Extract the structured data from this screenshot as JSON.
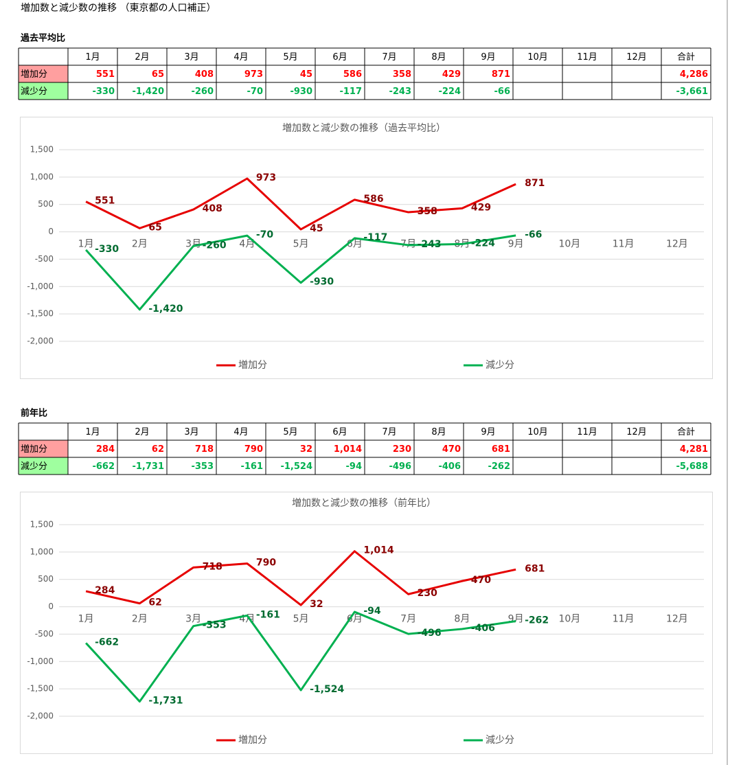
{
  "title": "増加数と減少数の推移 （東京都の人口補正）",
  "sections": [
    {
      "heading": "過去平均比",
      "table": {
        "header": [
          "1月",
          "2月",
          "3月",
          "4月",
          "5月",
          "6月",
          "7月",
          "8月",
          "9月",
          "10月",
          "11月",
          "12月",
          "合計"
        ],
        "rows": [
          {
            "label": "増加分",
            "values": [
              "551",
              "65",
              "408",
              "973",
              "45",
              "586",
              "358",
              "429",
              "871"
            ],
            "total": "4,286"
          },
          {
            "label": "減少分",
            "values": [
              "-330",
              "-1,420",
              "-260",
              "-70",
              "-930",
              "-117",
              "-243",
              "-224",
              "-66"
            ],
            "total": "-3,661"
          }
        ]
      }
    },
    {
      "heading": "前年比",
      "table": {
        "header": [
          "1月",
          "2月",
          "3月",
          "4月",
          "5月",
          "6月",
          "7月",
          "8月",
          "9月",
          "10月",
          "11月",
          "12月",
          "合計"
        ],
        "rows": [
          {
            "label": "増加分",
            "values": [
              "284",
              "62",
              "718",
              "790",
              "32",
              "1,014",
              "230",
              "470",
              "681"
            ],
            "total": "4,281"
          },
          {
            "label": "減少分",
            "values": [
              "-662",
              "-1,731",
              "-353",
              "-161",
              "-1,524",
              "-94",
              "-496",
              "-406",
              "-262"
            ],
            "total": "-5,688"
          }
        ]
      }
    }
  ],
  "chart_data": [
    {
      "type": "line",
      "title": "増加数と減少数の推移（過去平均比）",
      "categories": [
        "1月",
        "2月",
        "3月",
        "4月",
        "5月",
        "6月",
        "7月",
        "8月",
        "9月",
        "10月",
        "11月",
        "12月"
      ],
      "series": [
        {
          "name": "増加分",
          "color": "#e60000",
          "label_color": "#8b0000",
          "values": [
            551,
            65,
            408,
            973,
            45,
            586,
            358,
            429,
            871,
            null,
            null,
            null
          ],
          "value_labels": [
            "551",
            "65",
            "408",
            "973",
            "45",
            "586",
            "358",
            "429",
            "871",
            null,
            null,
            null
          ]
        },
        {
          "name": "減少分",
          "color": "#00b050",
          "label_color": "#006b30",
          "values": [
            -330,
            -1420,
            -260,
            -70,
            -930,
            -117,
            -243,
            -224,
            -66,
            null,
            null,
            null
          ],
          "value_labels": [
            "-330",
            "-1,420",
            "-260",
            "-70",
            "-930",
            "-117",
            "-243",
            "-224",
            "-66",
            null,
            null,
            null
          ]
        }
      ],
      "ylim": [
        -2000,
        1500
      ],
      "yticks": [
        {
          "value": 1500,
          "label": "1,500"
        },
        {
          "value": 1000,
          "label": "1,000"
        },
        500,
        0,
        -500,
        {
          "value": -1000,
          "label": "-1,000"
        },
        {
          "value": -1500,
          "label": "-1,500"
        },
        {
          "value": -2000,
          "label": "-2,000"
        }
      ],
      "grid": true,
      "legend": "bottom"
    },
    {
      "type": "line",
      "title": "増加数と減少数の推移（前年比）",
      "categories": [
        "1月",
        "2月",
        "3月",
        "4月",
        "5月",
        "6月",
        "7月",
        "8月",
        "9月",
        "10月",
        "11月",
        "12月"
      ],
      "series": [
        {
          "name": "増加分",
          "color": "#e60000",
          "label_color": "#8b0000",
          "values": [
            284,
            62,
            718,
            790,
            32,
            1014,
            230,
            470,
            681,
            null,
            null,
            null
          ],
          "value_labels": [
            "284",
            "62",
            "718",
            "790",
            "32",
            "1,014",
            "230",
            "470",
            "681",
            null,
            null,
            null
          ]
        },
        {
          "name": "減少分",
          "color": "#00b050",
          "label_color": "#006b30",
          "values": [
            -662,
            -1731,
            -353,
            -161,
            -1524,
            -94,
            -496,
            -406,
            -262,
            null,
            null,
            null
          ],
          "value_labels": [
            "-662",
            "-1,731",
            "-353",
            "-161",
            "-1,524",
            "-94",
            "-496",
            "-406",
            "-262",
            null,
            null,
            null
          ]
        }
      ],
      "ylim": [
        -2000,
        1500
      ],
      "yticks": [
        {
          "value": 1500,
          "label": "1,500"
        },
        {
          "value": 1000,
          "label": "1,000"
        },
        500,
        0,
        -500,
        {
          "value": -1000,
          "label": "-1,000"
        },
        {
          "value": -1500,
          "label": "-1,500"
        },
        {
          "value": -2000,
          "label": "-2,000"
        }
      ],
      "grid": true,
      "legend": "bottom"
    }
  ]
}
